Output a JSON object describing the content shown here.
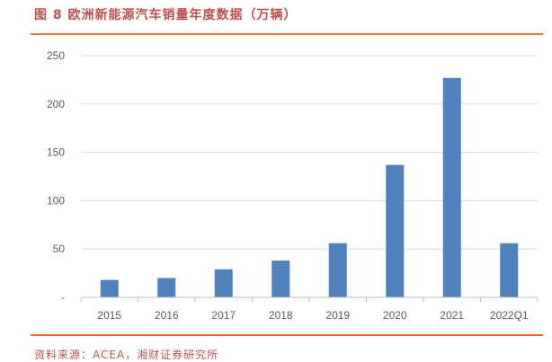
{
  "figure": {
    "title": "图 8 欧洲新能源汽车销量年度数据（万辆）",
    "source": "资料来源：ACEA，湘财证券研究所"
  },
  "colors": {
    "bar": "#4f81bd",
    "accent": "#e97132",
    "title": "#c0504d"
  },
  "chart_data": {
    "type": "bar",
    "title": "",
    "xlabel": "",
    "ylabel": "",
    "categories": [
      "2015",
      "2016",
      "2017",
      "2018",
      "2019",
      "2020",
      "2021",
      "2022Q1"
    ],
    "values": [
      18,
      20,
      29,
      38,
      56,
      137,
      227,
      56
    ],
    "ylim": [
      0,
      250
    ],
    "yticks": [
      0,
      50,
      100,
      150,
      200,
      250
    ],
    "ytick_labels": [
      "-",
      "50",
      "100",
      "150",
      "200",
      "250"
    ],
    "grid": true,
    "legend": "none"
  }
}
